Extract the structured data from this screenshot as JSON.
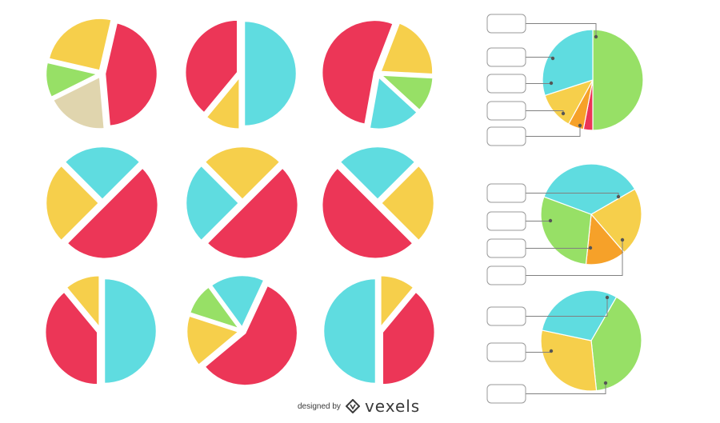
{
  "colors": {
    "red": "#EC3657",
    "cyan": "#5FDCE0",
    "yellow": "#F6CF4B",
    "green": "#97E066",
    "beige": "#E0D5AE",
    "orange": "#F6A129",
    "connector": "#808080",
    "label_box_border": "#9A9A9A"
  },
  "chart_data": [
    {
      "type": "pie",
      "id": "pie-r1c1",
      "slices": [
        {
          "color": "red",
          "value": 45
        },
        {
          "color": "beige",
          "value": 19
        },
        {
          "color": "green",
          "value": 11
        },
        {
          "color": "yellow",
          "value": 25
        }
      ]
    },
    {
      "type": "pie",
      "id": "pie-r1c2",
      "slices": [
        {
          "color": "cyan",
          "value": 50
        },
        {
          "color": "yellow",
          "value": 11
        },
        {
          "color": "red",
          "value": 39
        }
      ]
    },
    {
      "type": "pie",
      "id": "pie-r1c3",
      "slices": [
        {
          "color": "yellow",
          "value": 20
        },
        {
          "color": "green",
          "value": 11
        },
        {
          "color": "cyan",
          "value": 16
        },
        {
          "color": "red",
          "value": 53
        }
      ]
    },
    {
      "type": "pie",
      "id": "pie-r2c1",
      "slices": [
        {
          "color": "red",
          "value": 50
        },
        {
          "color": "yellow",
          "value": 25
        },
        {
          "color": "cyan",
          "value": 25
        }
      ]
    },
    {
      "type": "pie",
      "id": "pie-r2c2",
      "slices": [
        {
          "color": "red",
          "value": 50
        },
        {
          "color": "cyan",
          "value": 25
        },
        {
          "color": "yellow",
          "value": 25
        }
      ]
    },
    {
      "type": "pie",
      "id": "pie-r2c3",
      "slices": [
        {
          "color": "cyan",
          "value": 25
        },
        {
          "color": "yellow",
          "value": 25
        },
        {
          "color": "red",
          "value": 50
        }
      ]
    },
    {
      "type": "pie",
      "id": "pie-r3c1",
      "slices": [
        {
          "color": "cyan",
          "value": 50
        },
        {
          "color": "red",
          "value": 39
        },
        {
          "color": "yellow",
          "value": 11
        }
      ]
    },
    {
      "type": "pie",
      "id": "pie-r3c2",
      "slices": [
        {
          "color": "red",
          "value": 57
        },
        {
          "color": "yellow",
          "value": 16
        },
        {
          "color": "green",
          "value": 10
        },
        {
          "color": "cyan",
          "value": 17
        }
      ]
    },
    {
      "type": "pie",
      "id": "pie-r3c3",
      "slices": [
        {
          "color": "yellow",
          "value": 11
        },
        {
          "color": "red",
          "value": 39
        },
        {
          "color": "cyan",
          "value": 50
        }
      ]
    },
    {
      "type": "pie",
      "id": "pie-labeled-top",
      "slices": [
        {
          "color": "green",
          "value": 50
        },
        {
          "color": "red",
          "value": 3
        },
        {
          "color": "orange",
          "value": 5
        },
        {
          "color": "yellow",
          "value": 12
        },
        {
          "color": "cyan",
          "value": 30
        }
      ]
    },
    {
      "type": "pie",
      "id": "pie-labeled-middle",
      "slices": [
        {
          "color": "yellow",
          "value": 22
        },
        {
          "color": "orange",
          "value": 13
        },
        {
          "color": "green",
          "value": 29
        },
        {
          "color": "cyan",
          "value": 36
        }
      ]
    },
    {
      "type": "pie",
      "id": "pie-labeled-bottom",
      "slices": [
        {
          "color": "green",
          "value": 40
        },
        {
          "color": "yellow",
          "value": 30
        },
        {
          "color": "cyan",
          "value": 30
        }
      ]
    }
  ],
  "label_boxes": {
    "top": [
      "",
      "",
      "",
      "",
      ""
    ],
    "middle": [
      "",
      "",
      "",
      ""
    ],
    "bottom": [
      "",
      "",
      ""
    ]
  },
  "credit": {
    "prefix": "designed by",
    "brand_mark": "diamond-logo-icon",
    "brand": "vexels"
  }
}
